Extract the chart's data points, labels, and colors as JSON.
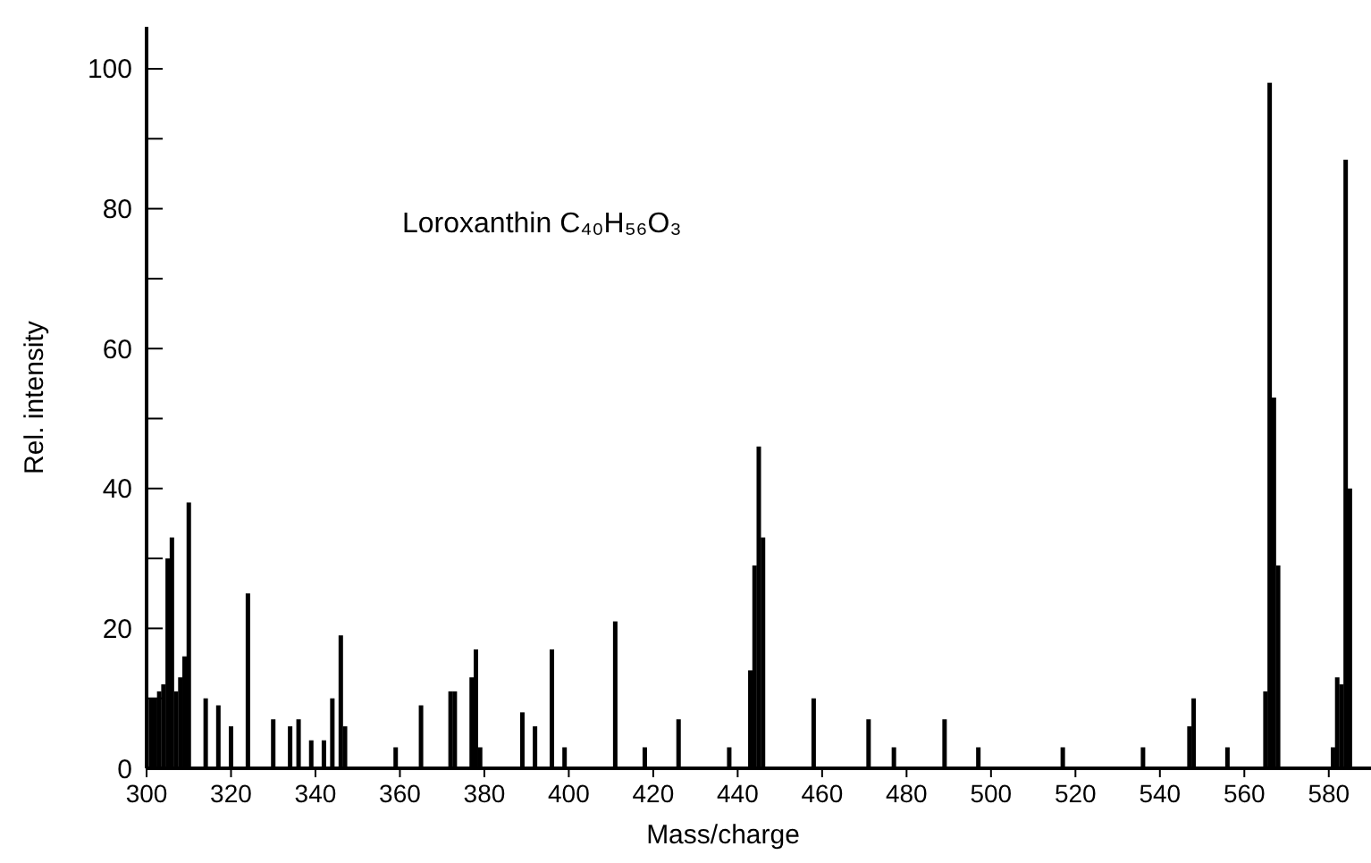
{
  "chart_data": {
    "type": "bar",
    "title": "Loroxanthin C₄₀H₅₆O₃",
    "xlabel": "Mass/charge",
    "ylabel": "Rel. intensity",
    "x": [
      301,
      302,
      303,
      304,
      305,
      306,
      307,
      308,
      309,
      310,
      314,
      317,
      320,
      324,
      330,
      334,
      336,
      339,
      342,
      344,
      346,
      347,
      359,
      365,
      372,
      373,
      377,
      378,
      379,
      389,
      392,
      396,
      399,
      411,
      418,
      426,
      438,
      443,
      444,
      445,
      446,
      458,
      471,
      477,
      489,
      497,
      517,
      536,
      547,
      548,
      556,
      565,
      566,
      567,
      568,
      581,
      582,
      583,
      584,
      585
    ],
    "values": [
      10,
      10,
      11,
      12,
      30,
      33,
      11,
      13,
      16,
      38,
      10,
      9,
      6,
      25,
      7,
      6,
      7,
      4,
      4,
      10,
      19,
      6,
      3,
      9,
      11,
      11,
      13,
      17,
      3,
      8,
      6,
      17,
      3,
      21,
      3,
      7,
      3,
      14,
      29,
      46,
      33,
      10,
      7,
      3,
      7,
      3,
      3,
      3,
      6,
      10,
      3,
      11,
      98,
      53,
      29,
      3,
      13,
      12,
      87,
      40
    ],
    "color": "#000000",
    "xlim": [
      300,
      590
    ],
    "ylim": [
      0,
      106
    ],
    "xticks": [
      300,
      320,
      340,
      360,
      380,
      400,
      420,
      440,
      460,
      480,
      500,
      520,
      540,
      560,
      580
    ],
    "yticks": [
      0,
      {
        "value": 10,
        "label": null
      },
      20,
      {
        "value": 30,
        "label": null
      },
      40,
      {
        "value": 50,
        "label": null
      },
      60,
      {
        "value": 70,
        "label": null
      },
      80,
      {
        "value": 90,
        "label": null
      },
      100
    ],
    "grid": false
  }
}
